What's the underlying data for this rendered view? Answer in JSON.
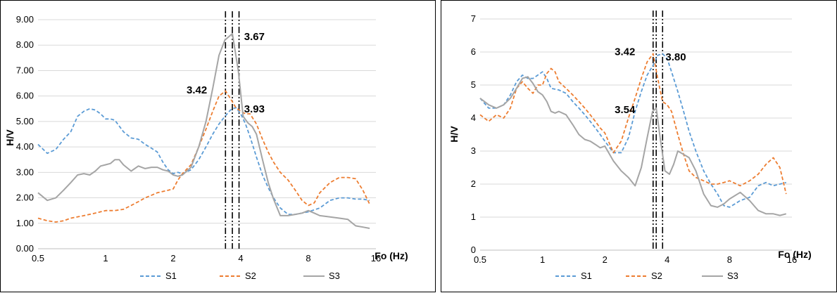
{
  "chart_data": [
    {
      "type": "line",
      "title": "",
      "xlabel": "Fo (Hz)",
      "ylabel": "H/V",
      "xscale": "log2",
      "xlim": [
        0.5,
        16
      ],
      "ylim": [
        0,
        9
      ],
      "x_ticks": [
        "0.5",
        "1",
        "2",
        "4",
        "8",
        "16"
      ],
      "y_ticks": [
        "0.00",
        "1.00",
        "2.00",
        "3.00",
        "4.00",
        "5.00",
        "6.00",
        "7.00",
        "8.00",
        "9.00"
      ],
      "grid": "horizontal",
      "legend": "bottom",
      "annotations": [
        {
          "text": "3.67",
          "x": 4.6,
          "y": 8.2
        },
        {
          "text": "3.42",
          "x": 2.55,
          "y": 6.1
        },
        {
          "text": "3.93",
          "x": 4.6,
          "y": 5.35
        }
      ],
      "vlines": [
        3.42,
        3.67,
        3.93
      ],
      "series": [
        {
          "name": "S1",
          "color": "#5B9BD5",
          "dash": "dashed",
          "x": [
            0.5,
            0.55,
            0.6,
            0.65,
            0.7,
            0.75,
            0.8,
            0.85,
            0.9,
            0.95,
            1.0,
            1.05,
            1.1,
            1.2,
            1.3,
            1.4,
            1.5,
            1.6,
            1.7,
            1.8,
            1.9,
            2.0,
            2.1,
            2.2,
            2.4,
            2.6,
            2.8,
            3.0,
            3.2,
            3.4,
            3.6,
            3.8,
            4.0,
            4.2,
            4.4,
            4.7,
            5.0,
            5.3,
            5.6,
            6.0,
            6.5,
            7.0,
            7.5,
            8.0,
            9.0,
            10.0,
            11.0,
            12.0,
            13.0,
            14.0,
            15.0
          ],
          "y": [
            4.1,
            3.75,
            3.9,
            4.3,
            4.6,
            5.2,
            5.4,
            5.5,
            5.45,
            5.3,
            5.1,
            5.1,
            5.05,
            4.6,
            4.35,
            4.3,
            4.1,
            3.95,
            3.8,
            3.4,
            3.1,
            2.95,
            3.0,
            2.95,
            3.1,
            3.5,
            4.0,
            4.5,
            4.9,
            5.2,
            5.45,
            5.55,
            5.3,
            4.9,
            4.4,
            3.6,
            2.9,
            2.4,
            2.0,
            1.6,
            1.35,
            1.35,
            1.4,
            1.45,
            1.6,
            1.9,
            2.0,
            2.0,
            1.95,
            1.95,
            1.9
          ]
        },
        {
          "name": "S2",
          "color": "#ED7D31",
          "dash": "dashed",
          "x": [
            0.5,
            0.55,
            0.6,
            0.65,
            0.7,
            0.8,
            0.9,
            1.0,
            1.1,
            1.2,
            1.3,
            1.4,
            1.5,
            1.6,
            1.7,
            1.8,
            1.9,
            2.0,
            2.1,
            2.2,
            2.4,
            2.6,
            2.8,
            3.0,
            3.2,
            3.42,
            3.6,
            3.8,
            4.0,
            4.2,
            4.4,
            4.7,
            5.0,
            5.3,
            5.6,
            6.0,
            6.5,
            7.0,
            7.5,
            8.0,
            8.5,
            9.0,
            10.0,
            11.0,
            12.0,
            13.0,
            14.0,
            15.0
          ],
          "y": [
            1.2,
            1.1,
            1.05,
            1.1,
            1.2,
            1.3,
            1.4,
            1.5,
            1.5,
            1.55,
            1.7,
            1.85,
            2.0,
            2.1,
            2.2,
            2.25,
            2.3,
            2.35,
            2.7,
            2.95,
            3.3,
            4.0,
            4.7,
            5.4,
            6.0,
            6.2,
            5.9,
            5.55,
            5.4,
            5.3,
            5.3,
            4.9,
            4.3,
            3.8,
            3.4,
            3.0,
            2.7,
            2.3,
            1.9,
            1.7,
            1.8,
            2.2,
            2.6,
            2.8,
            2.8,
            2.75,
            2.3,
            1.75
          ]
        },
        {
          "name": "S3",
          "color": "#A5A5A5",
          "dash": "solid",
          "x": [
            0.5,
            0.55,
            0.6,
            0.65,
            0.7,
            0.75,
            0.8,
            0.85,
            0.9,
            0.95,
            1.0,
            1.05,
            1.1,
            1.15,
            1.2,
            1.3,
            1.4,
            1.5,
            1.6,
            1.7,
            1.8,
            1.9,
            2.0,
            2.1,
            2.2,
            2.4,
            2.6,
            2.8,
            3.0,
            3.2,
            3.4,
            3.67,
            3.9,
            4.1,
            4.3,
            4.5,
            4.7,
            5.0,
            5.3,
            5.6,
            6.0,
            6.5,
            7.0,
            7.5,
            8.0,
            8.5,
            9.0,
            10.0,
            11.0,
            12.0,
            13.0,
            14.0,
            15.0
          ],
          "y": [
            2.2,
            1.9,
            2.0,
            2.3,
            2.6,
            2.9,
            2.95,
            2.9,
            3.05,
            3.25,
            3.3,
            3.35,
            3.5,
            3.5,
            3.3,
            3.05,
            3.25,
            3.15,
            3.2,
            3.2,
            3.1,
            3.05,
            2.9,
            2.85,
            2.9,
            3.2,
            4.0,
            5.0,
            6.3,
            7.6,
            8.2,
            8.45,
            7.0,
            5.2,
            4.95,
            4.8,
            4.5,
            3.5,
            2.6,
            1.95,
            1.3,
            1.3,
            1.35,
            1.4,
            1.5,
            1.4,
            1.3,
            1.25,
            1.2,
            1.15,
            0.9,
            0.85,
            0.8
          ]
        }
      ]
    },
    {
      "type": "line",
      "title": "",
      "xlabel": "Fo (Hz)",
      "ylabel": "H/V",
      "xscale": "log2",
      "xlim": [
        0.5,
        16
      ],
      "ylim": [
        0,
        7
      ],
      "x_ticks": [
        "0.5",
        "1",
        "2",
        "4",
        "8",
        "16"
      ],
      "y_ticks": [
        "0",
        "1",
        "2",
        "3",
        "4",
        "5",
        "6",
        "7"
      ],
      "grid": "horizontal",
      "legend": "bottom",
      "annotations": [
        {
          "text": "3.42",
          "x": 2.5,
          "y": 5.9
        },
        {
          "text": "3.80",
          "x": 4.4,
          "y": 5.75
        },
        {
          "text": "3.54",
          "x": 2.5,
          "y": 4.15
        }
      ],
      "vlines": [
        3.42,
        3.54,
        3.8
      ],
      "series": [
        {
          "name": "S1",
          "color": "#5B9BD5",
          "dash": "dashed",
          "x": [
            0.5,
            0.55,
            0.6,
            0.65,
            0.7,
            0.75,
            0.8,
            0.85,
            0.9,
            0.95,
            1.0,
            1.05,
            1.1,
            1.2,
            1.3,
            1.4,
            1.5,
            1.6,
            1.7,
            1.8,
            1.9,
            2.0,
            2.2,
            2.4,
            2.6,
            2.8,
            3.0,
            3.2,
            3.42,
            3.6,
            3.8,
            4.0,
            4.2,
            4.5,
            4.8,
            5.1,
            5.5,
            6.0,
            6.5,
            7.0,
            7.5,
            8.0,
            9.0,
            10.0,
            11.0,
            12.0,
            13.0,
            14.0,
            15.0
          ],
          "y": [
            4.6,
            4.3,
            4.3,
            4.4,
            4.7,
            5.1,
            5.3,
            5.2,
            5.2,
            5.3,
            5.4,
            5.2,
            4.9,
            4.85,
            4.75,
            4.5,
            4.3,
            4.1,
            3.9,
            3.7,
            3.5,
            3.3,
            2.95,
            2.95,
            3.4,
            4.2,
            4.8,
            5.3,
            5.6,
            5.9,
            5.95,
            5.8,
            5.4,
            4.8,
            4.2,
            3.6,
            3.0,
            2.4,
            2.0,
            1.7,
            1.35,
            1.3,
            1.5,
            1.6,
            1.95,
            2.05,
            1.95,
            2.0,
            2.05
          ]
        },
        {
          "name": "S2",
          "color": "#ED7D31",
          "dash": "dashed",
          "x": [
            0.5,
            0.55,
            0.6,
            0.65,
            0.7,
            0.75,
            0.8,
            0.85,
            0.9,
            0.95,
            1.0,
            1.05,
            1.1,
            1.15,
            1.2,
            1.3,
            1.4,
            1.5,
            1.6,
            1.7,
            1.8,
            1.9,
            2.0,
            2.2,
            2.4,
            2.6,
            2.8,
            3.0,
            3.2,
            3.42,
            3.6,
            3.8,
            4.0,
            4.2,
            4.5,
            4.8,
            5.1,
            5.5,
            6.0,
            6.5,
            7.0,
            7.5,
            8.0,
            9.0,
            10.0,
            11.0,
            12.0,
            13.0,
            14.0,
            15.0
          ],
          "y": [
            4.1,
            3.9,
            4.1,
            4.0,
            4.3,
            4.9,
            5.1,
            4.9,
            4.75,
            5.0,
            5.0,
            5.35,
            5.5,
            5.4,
            5.1,
            4.9,
            4.7,
            4.5,
            4.3,
            4.1,
            3.9,
            3.7,
            3.55,
            2.95,
            3.3,
            4.0,
            4.6,
            5.2,
            5.7,
            5.95,
            5.2,
            4.5,
            4.4,
            4.2,
            3.5,
            2.9,
            2.4,
            2.2,
            2.1,
            2.0,
            2.0,
            2.05,
            2.1,
            1.95,
            2.1,
            2.3,
            2.6,
            2.8,
            2.5,
            1.7
          ]
        },
        {
          "name": "S3",
          "color": "#A5A5A5",
          "dash": "solid",
          "x": [
            0.5,
            0.55,
            0.6,
            0.65,
            0.7,
            0.75,
            0.8,
            0.85,
            0.9,
            0.95,
            1.0,
            1.05,
            1.1,
            1.15,
            1.2,
            1.3,
            1.4,
            1.5,
            1.6,
            1.7,
            1.8,
            1.9,
            2.0,
            2.2,
            2.4,
            2.6,
            2.8,
            3.0,
            3.2,
            3.4,
            3.54,
            3.7,
            3.9,
            4.1,
            4.3,
            4.5,
            4.8,
            5.1,
            5.5,
            6.0,
            6.5,
            7.0,
            7.5,
            8.0,
            9.0,
            10.0,
            11.0,
            12.0,
            13.0,
            14.0,
            15.0
          ],
          "y": [
            4.6,
            4.4,
            4.3,
            4.4,
            4.6,
            4.9,
            5.2,
            5.25,
            5.05,
            4.8,
            4.7,
            4.5,
            4.2,
            4.15,
            4.2,
            4.1,
            3.8,
            3.5,
            3.35,
            3.3,
            3.2,
            3.1,
            3.15,
            2.7,
            2.4,
            2.2,
            1.95,
            2.5,
            3.4,
            4.2,
            4.3,
            3.4,
            2.4,
            2.3,
            2.6,
            3.0,
            2.9,
            2.8,
            2.4,
            1.7,
            1.35,
            1.3,
            1.4,
            1.55,
            1.75,
            1.5,
            1.2,
            1.1,
            1.1,
            1.05,
            1.1
          ]
        }
      ]
    }
  ]
}
